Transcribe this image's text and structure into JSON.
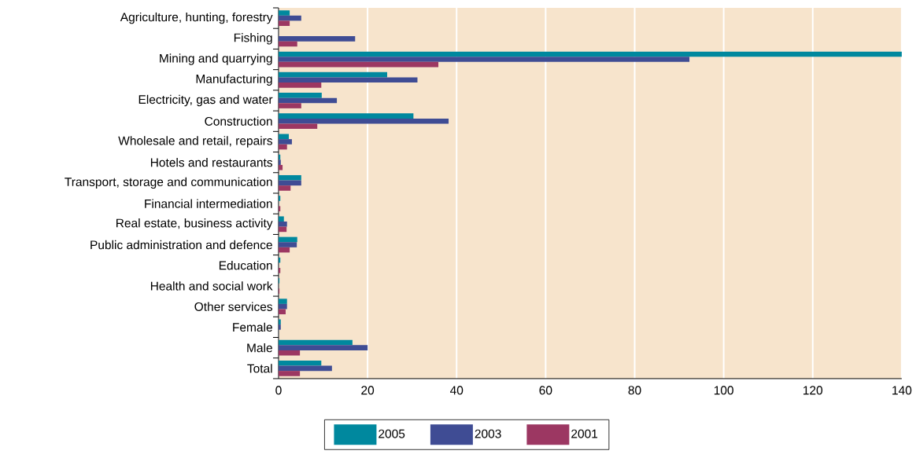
{
  "chart_data": {
    "type": "bar",
    "orientation": "horizontal",
    "categories": [
      "Agriculture, hunting, forestry",
      "Fishing",
      "Mining and quarrying",
      "Manufacturing",
      "Electricity, gas and water",
      "Construction",
      "Wholesale and retail, repairs",
      "Hotels and restaurants",
      "Transport, storage and communication",
      "Financial intermediation",
      "Real estate, business activity",
      "Public administration and defence",
      "Education",
      "Health and social work",
      "Other services",
      "Female",
      "Male",
      "Total"
    ],
    "series": [
      {
        "name": "2005",
        "color": "#00889e",
        "values": [
          2.5,
          null,
          140,
          24.4,
          9.7,
          30.3,
          2.3,
          0.4,
          5.1,
          0.4,
          1.2,
          4.2,
          0.4,
          0.2,
          1.9,
          0.5,
          16.6,
          9.6
        ]
      },
      {
        "name": "2003",
        "color": "#3f4c94",
        "values": [
          5.1,
          17.2,
          92.3,
          31.2,
          13.1,
          38.2,
          3.0,
          0.5,
          5.1,
          null,
          1.9,
          4.1,
          null,
          null,
          1.9,
          0.5,
          20.0,
          12.0
        ]
      },
      {
        "name": "2001",
        "color": "#9c3762",
        "values": [
          2.5,
          4.2,
          35.9,
          9.6,
          5.1,
          8.7,
          1.9,
          0.9,
          2.7,
          0.4,
          1.8,
          2.5,
          0.4,
          0.2,
          1.6,
          null,
          4.8,
          4.8
        ]
      }
    ],
    "xlim": [
      0,
      140
    ],
    "xticks": [
      0,
      20,
      40,
      60,
      80,
      100,
      120,
      140
    ],
    "grid": "x",
    "legend": "bottom"
  }
}
